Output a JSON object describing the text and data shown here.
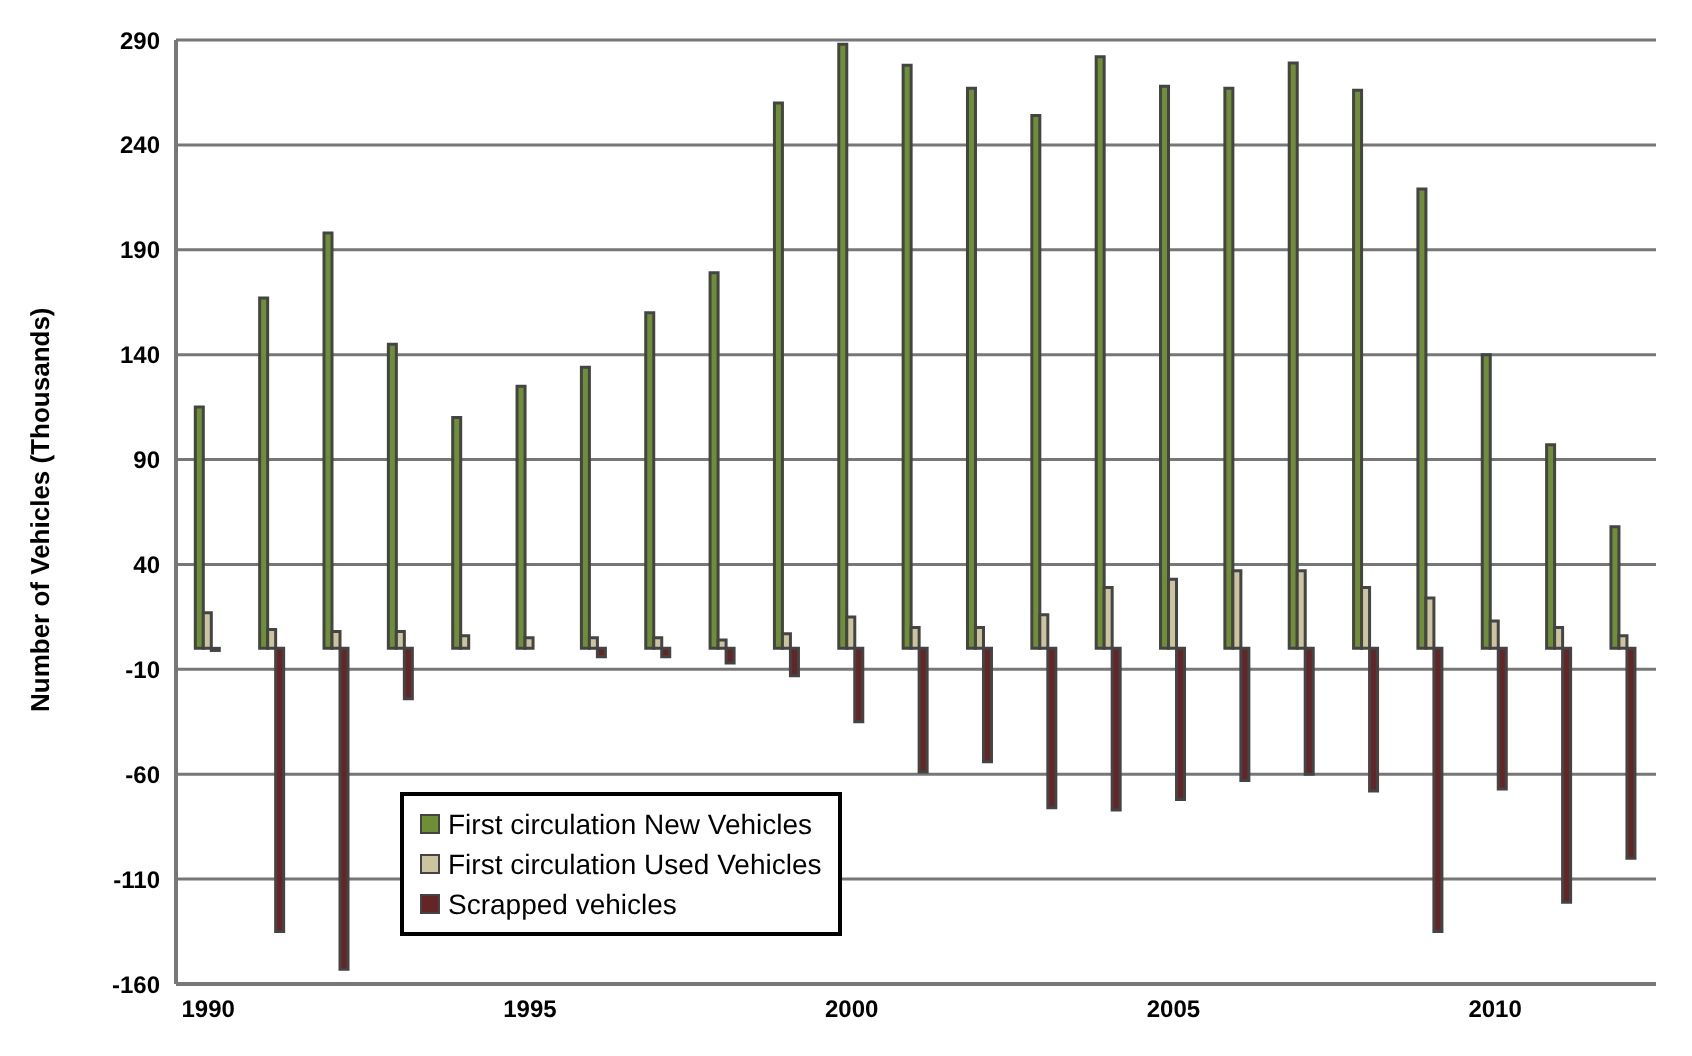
{
  "chart_data": {
    "type": "bar",
    "ylabel": "Number of Vehicles (Thousands)",
    "categories": [
      "1990",
      null,
      null,
      null,
      null,
      "1995",
      null,
      null,
      null,
      null,
      "2000",
      null,
      null,
      null,
      null,
      "2005",
      null,
      null,
      null,
      null,
      "2010",
      null,
      null
    ],
    "series": [
      {
        "name": "First circulation New Vehicles",
        "color": "#6e8f36",
        "values": [
          115,
          167,
          198,
          145,
          110,
          125,
          134,
          160,
          179,
          260,
          288,
          278,
          267,
          254,
          282,
          268,
          267,
          279,
          266,
          219,
          140,
          97,
          58
        ]
      },
      {
        "name": "First circulation Used Vehicles",
        "color": "#ccc49e",
        "values": [
          17,
          9,
          8,
          8,
          6,
          5,
          5,
          5,
          4,
          7,
          15,
          10,
          10,
          16,
          29,
          33,
          37,
          37,
          29,
          24,
          13,
          10,
          6
        ]
      },
      {
        "name": "Scrapped vehicles",
        "color": "#652526",
        "values": [
          -1,
          -135,
          -153,
          -24,
          0,
          0,
          -4,
          -4,
          -7,
          -13,
          -35,
          -59,
          -54,
          -76,
          -77,
          -72,
          -63,
          -60,
          -68,
          -135,
          -67,
          -121,
          -100
        ]
      }
    ],
    "ylim": [
      -160,
      290
    ],
    "yticks": [
      -160,
      -110,
      -60,
      -10,
      40,
      90,
      140,
      190,
      240,
      290
    ],
    "grid": "y",
    "legend": "bottom left"
  }
}
